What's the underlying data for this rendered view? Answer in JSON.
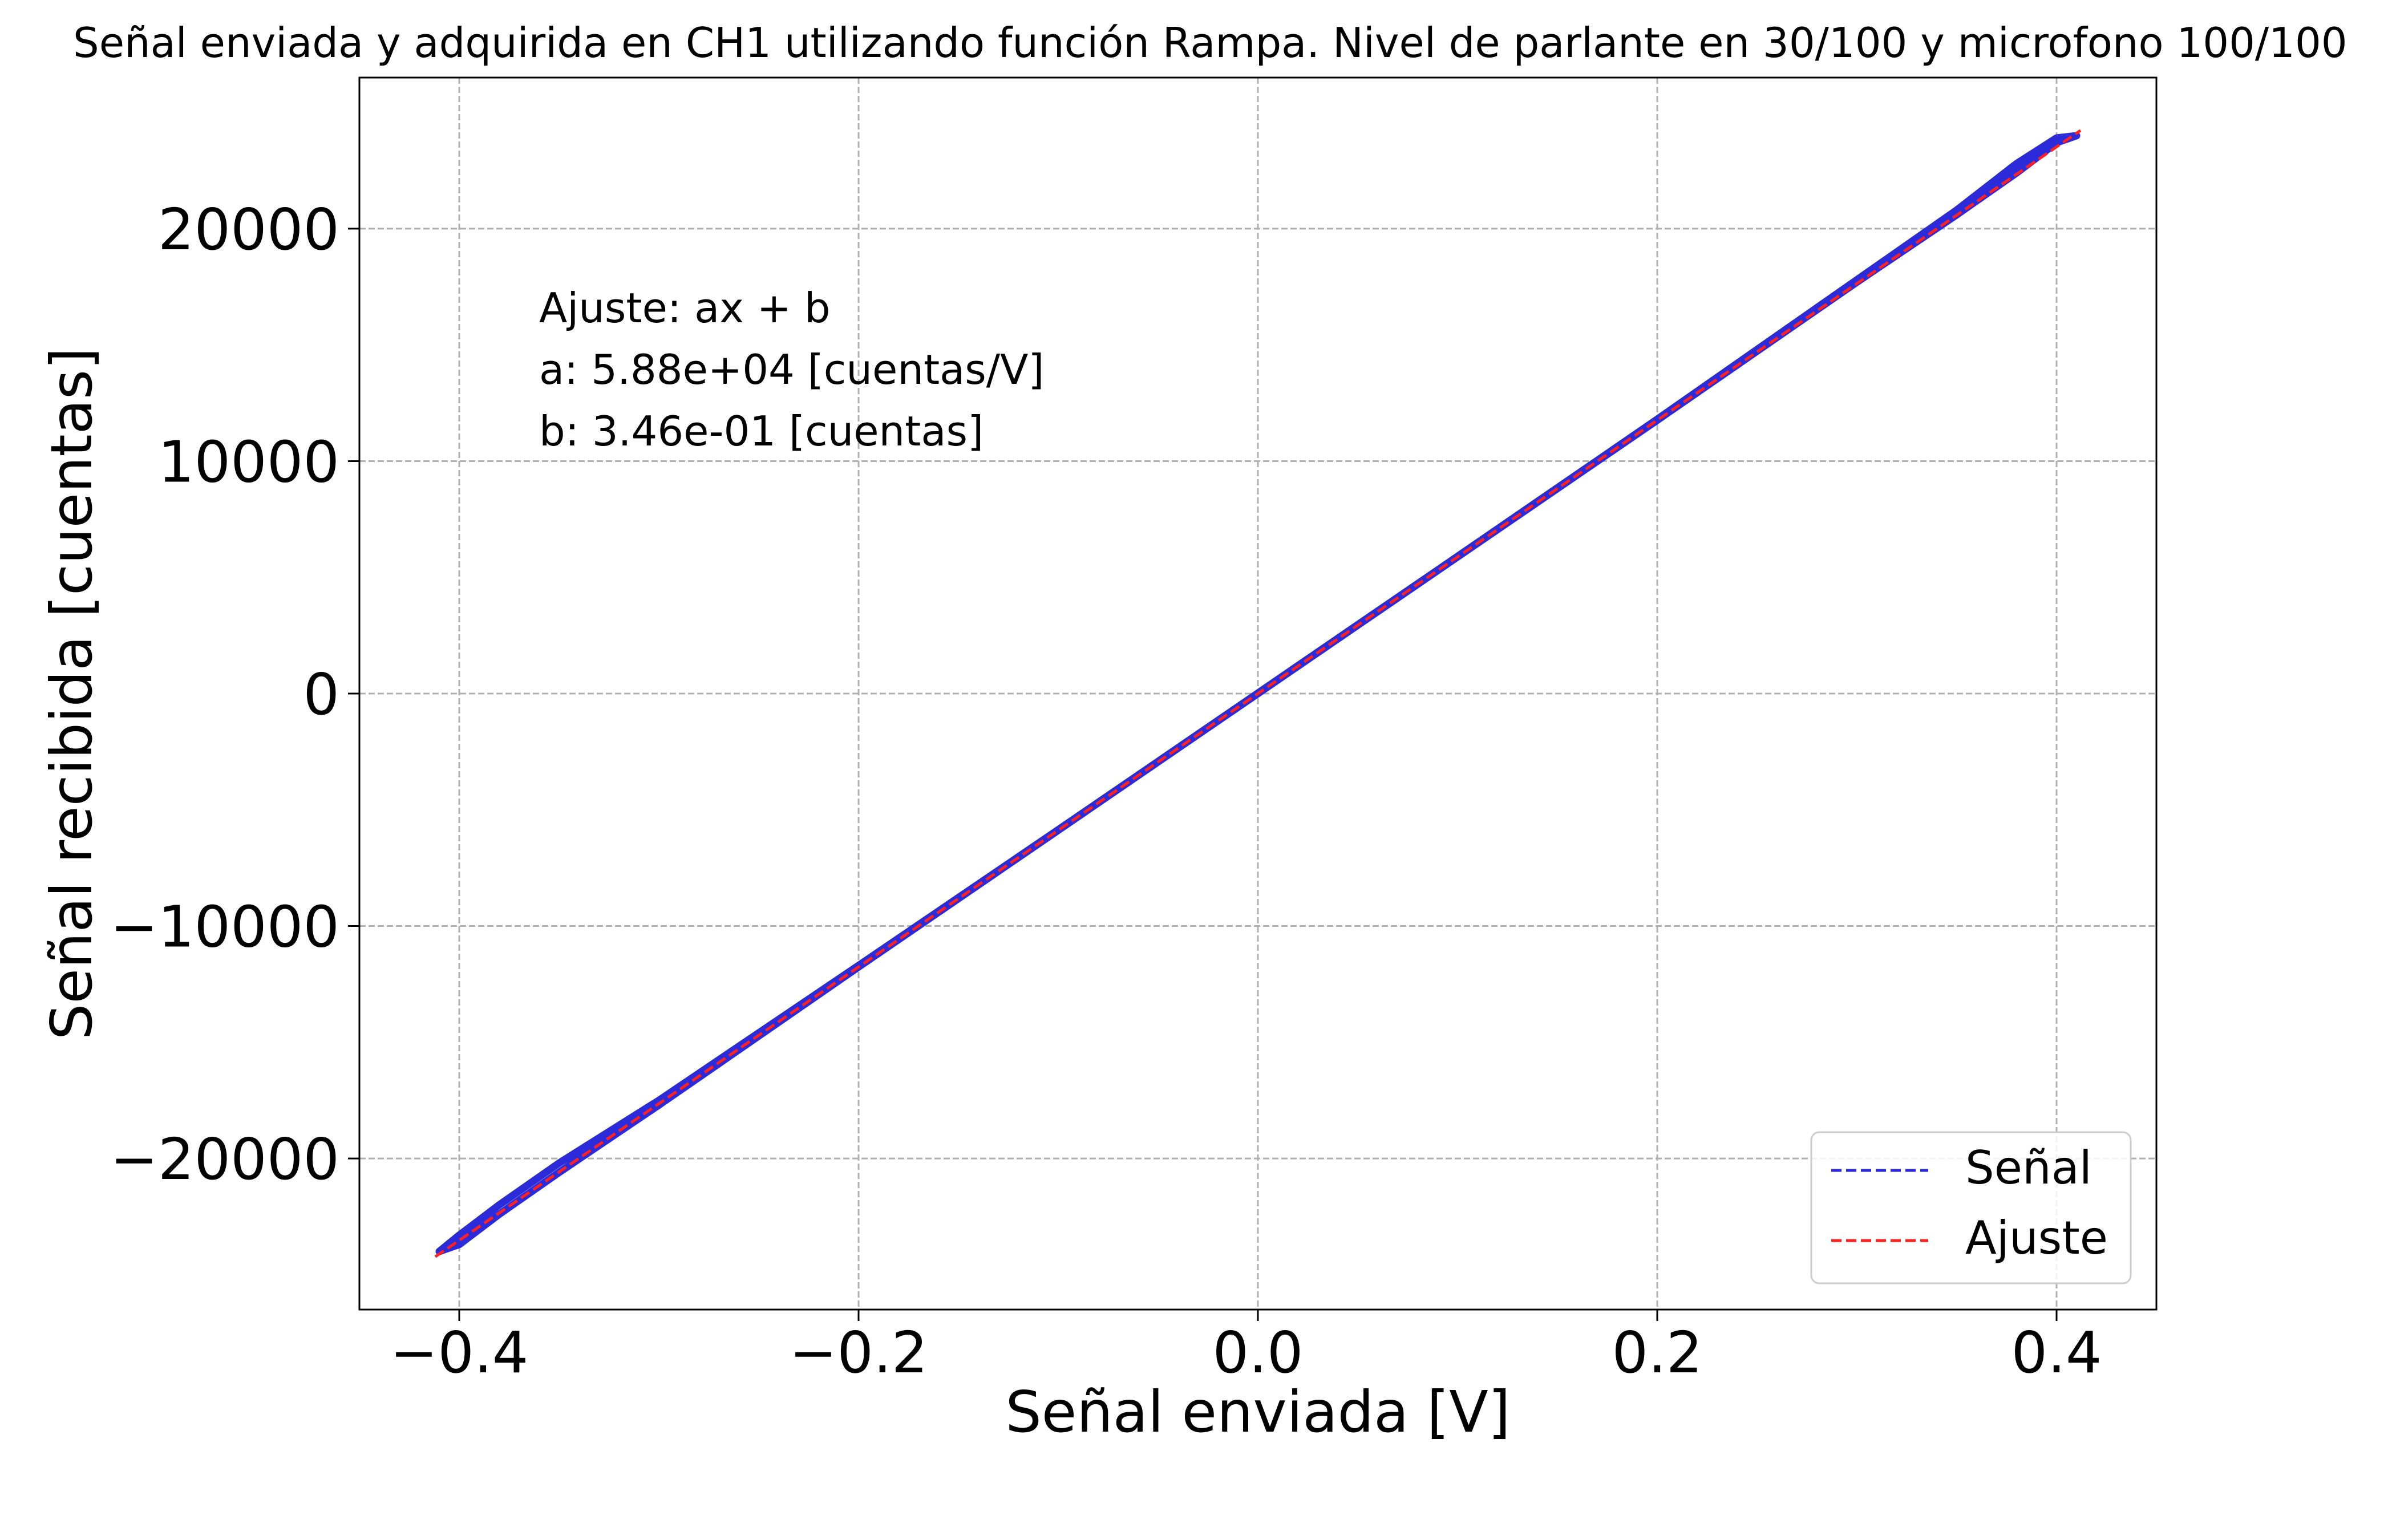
{
  "chart_data": {
    "type": "line",
    "title": "Señal enviada y adquirida en CH1 utilizando función Rampa. Nivel de parlante en 30/100 y microfono 100/100",
    "xlabel": "Señal enviada [V]",
    "ylabel": "Señal recibida [cuentas]",
    "xlim": [
      -0.45,
      0.45
    ],
    "ylim": [
      -26500,
      26500
    ],
    "x_ticks": [
      -0.4,
      -0.2,
      0.0,
      0.2,
      0.4
    ],
    "x_tick_labels": [
      "−0.4",
      "−0.2",
      "0.0",
      "0.2",
      "0.4"
    ],
    "y_ticks": [
      -20000,
      -10000,
      0,
      10000,
      20000
    ],
    "y_tick_labels": [
      "−20000",
      "−10000",
      "0",
      "10000",
      "20000"
    ],
    "grid": true,
    "legend_position": "lower-right",
    "annotation": [
      "Ajuste: ax + b",
      "a: 5.88e+04 [cuentas/V]",
      "b: 3.46e-01 [cuentas]"
    ],
    "series": [
      {
        "name": "Señal",
        "color": "#2b2bd9",
        "style": "dashed",
        "x": [
          -0.41,
          -0.4,
          -0.38,
          -0.35,
          -0.3,
          -0.2,
          -0.1,
          0.0,
          0.1,
          0.2,
          0.3,
          0.35,
          0.38,
          0.4,
          0.41
        ],
        "y": [
          -24000,
          -23700,
          -22400,
          -20600,
          -17700,
          -11760,
          -5880,
          0,
          5880,
          11760,
          17700,
          20600,
          22400,
          23700,
          24000
        ],
        "y_return": [
          -24000,
          -23300,
          -22000,
          -20200,
          -17500,
          -11700,
          -5860,
          20,
          5900,
          11800,
          17800,
          20800,
          22800,
          23900,
          24000
        ]
      },
      {
        "name": "Ajuste",
        "color": "#ff2020",
        "style": "dashed",
        "a": 58800,
        "b": 0.346,
        "x": [
          -0.412,
          0.412
        ]
      }
    ]
  }
}
